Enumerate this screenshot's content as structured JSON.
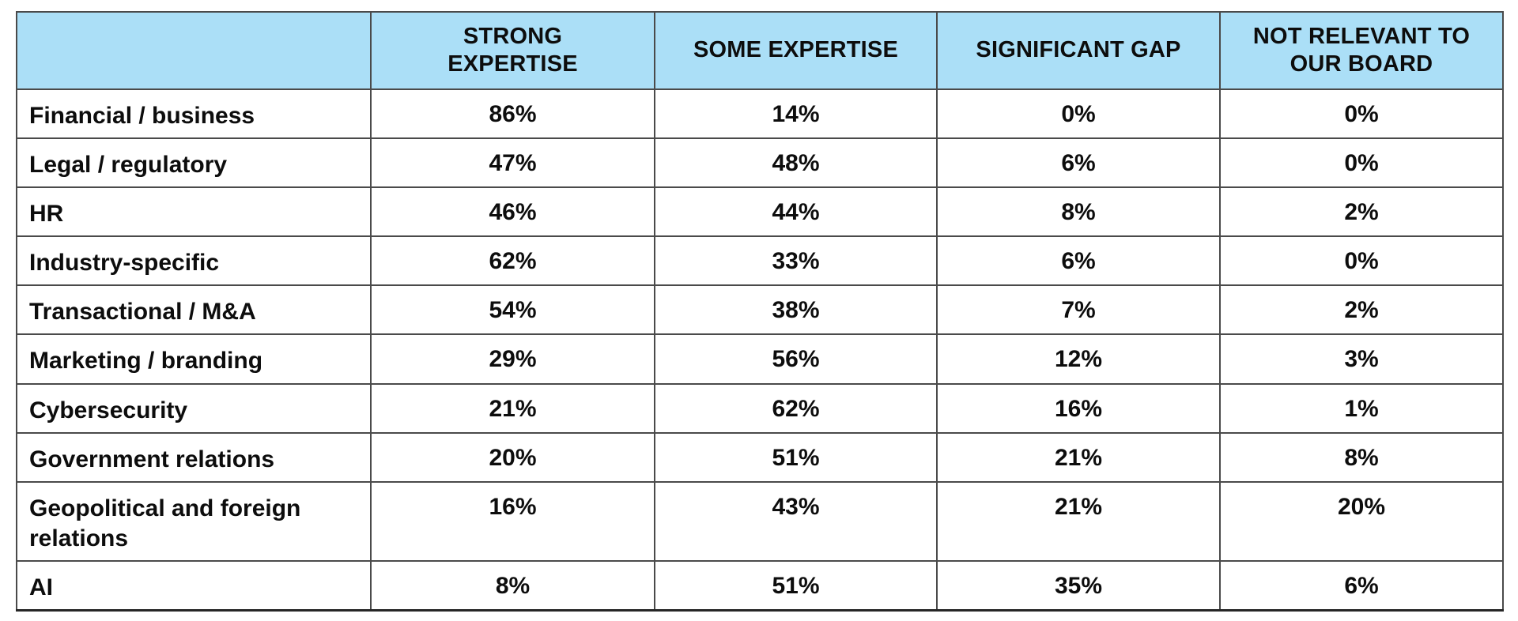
{
  "table": {
    "columns": [
      {
        "label": ""
      },
      {
        "label": "STRONG EXPERTISE"
      },
      {
        "label": "SOME EXPERTISE"
      },
      {
        "label": "SIGNIFICANT GAP"
      },
      {
        "label": "NOT RELEVANT TO OUR BOARD"
      }
    ],
    "rows": [
      {
        "label": "Financial / business",
        "values": [
          "86%",
          "14%",
          "0%",
          "0%"
        ]
      },
      {
        "label": "Legal / regulatory",
        "values": [
          "47%",
          "48%",
          "6%",
          "0%"
        ]
      },
      {
        "label": "HR",
        "values": [
          "46%",
          "44%",
          "8%",
          "2%"
        ]
      },
      {
        "label": "Industry-specific",
        "values": [
          "62%",
          "33%",
          "6%",
          "0%"
        ]
      },
      {
        "label": "Transactional / M&A",
        "values": [
          "54%",
          "38%",
          "7%",
          "2%"
        ]
      },
      {
        "label": "Marketing / branding",
        "values": [
          "29%",
          "56%",
          "12%",
          "3%"
        ]
      },
      {
        "label": "Cybersecurity",
        "values": [
          "21%",
          "62%",
          "16%",
          "1%"
        ]
      },
      {
        "label": "Government relations",
        "values": [
          "20%",
          "51%",
          "21%",
          "8%"
        ]
      },
      {
        "label": "Geopolitical and foreign relations",
        "values": [
          "16%",
          "43%",
          "21%",
          "20%"
        ]
      },
      {
        "label": "AI",
        "values": [
          "8%",
          "51%",
          "35%",
          "6%"
        ]
      }
    ]
  },
  "colors": {
    "header_bg": "#abdff7",
    "grid_line": "#4a4a4a",
    "outer_border": "#262626",
    "text": "#0d0d0d",
    "row_bg": "#ffffff"
  },
  "chart_data": {
    "type": "table",
    "title": "",
    "categories": [
      "Financial / business",
      "Legal / regulatory",
      "HR",
      "Industry-specific",
      "Transactional / M&A",
      "Marketing / branding",
      "Cybersecurity",
      "Government relations",
      "Geopolitical and foreign relations",
      "AI"
    ],
    "series": [
      {
        "name": "STRONG EXPERTISE",
        "values": [
          86,
          47,
          46,
          62,
          54,
          29,
          21,
          20,
          16,
          8
        ]
      },
      {
        "name": "SOME EXPERTISE",
        "values": [
          14,
          48,
          44,
          33,
          38,
          56,
          62,
          51,
          43,
          51
        ]
      },
      {
        "name": "SIGNIFICANT GAP",
        "values": [
          0,
          6,
          8,
          6,
          7,
          12,
          16,
          21,
          21,
          35
        ]
      },
      {
        "name": "NOT RELEVANT TO OUR BOARD",
        "values": [
          0,
          0,
          2,
          0,
          2,
          3,
          1,
          8,
          20,
          6
        ]
      }
    ],
    "value_unit": "%"
  }
}
